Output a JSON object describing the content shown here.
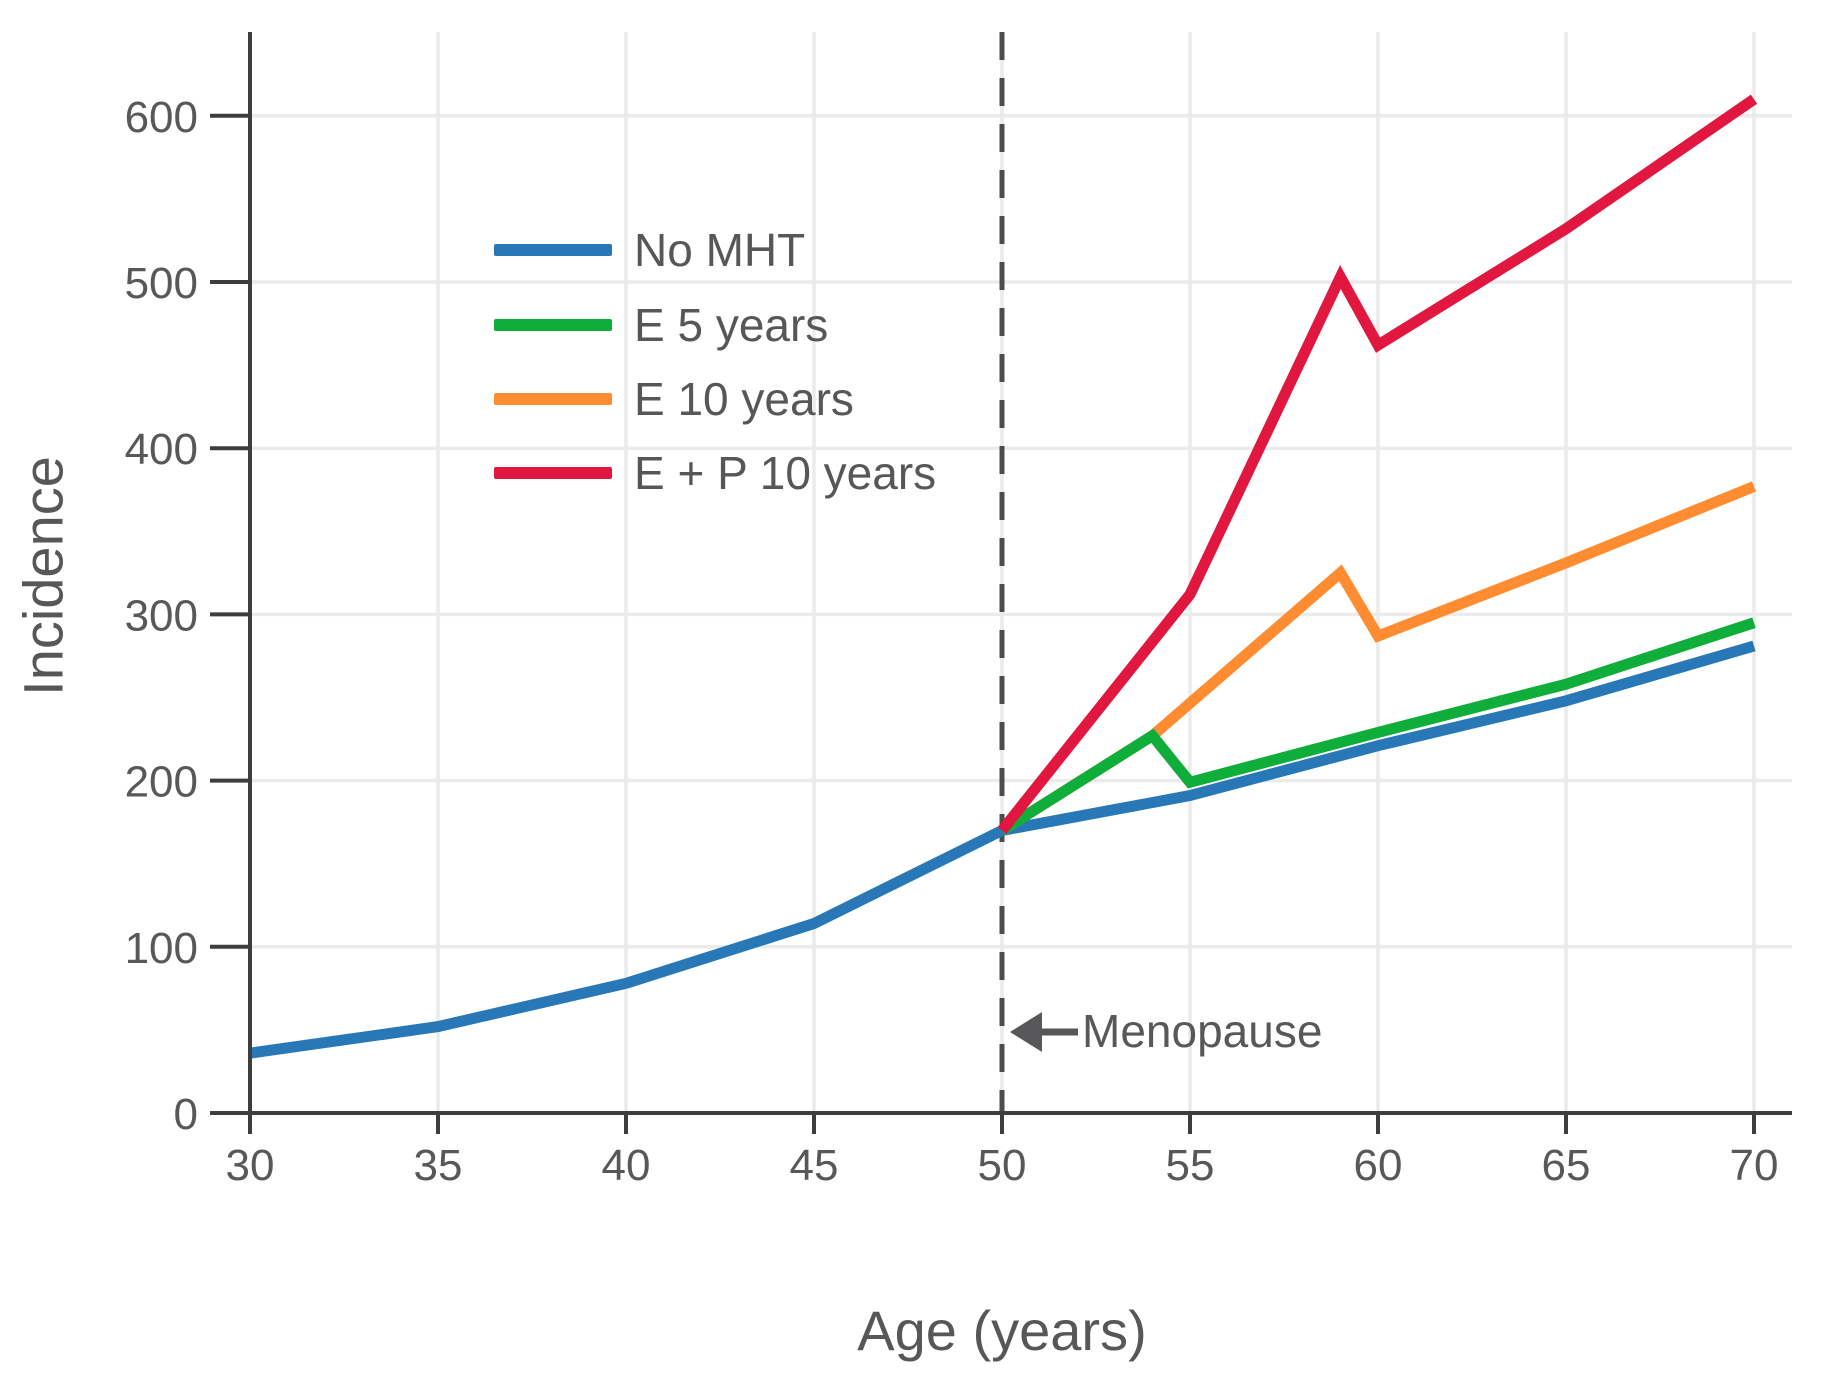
{
  "chart_data": {
    "type": "line",
    "title": "",
    "xlabel": "Age (years)",
    "ylabel": "Incidence",
    "xlim": [
      30,
      70
    ],
    "ylim": [
      0,
      650
    ],
    "xticks": [
      30,
      35,
      40,
      45,
      50,
      55,
      60,
      65,
      70
    ],
    "yticks": [
      0,
      100,
      200,
      300,
      400,
      500,
      600
    ],
    "grid": true,
    "legend_position": "upper-left-inside",
    "annotations": [
      {
        "label": "Menopause",
        "x": 50,
        "arrow": "left",
        "y": 50
      }
    ],
    "reference_lines": [
      {
        "axis": "x",
        "value": 50,
        "style": "dashed"
      }
    ],
    "series": [
      {
        "name": "No MHT",
        "color": "#2878b8",
        "points": [
          [
            30,
            36
          ],
          [
            35,
            52
          ],
          [
            40,
            78
          ],
          [
            45,
            114
          ],
          [
            50,
            170
          ],
          [
            55,
            191
          ],
          [
            60,
            221
          ],
          [
            65,
            248
          ],
          [
            70,
            281
          ]
        ]
      },
      {
        "name": "E 5 years",
        "color": "#0fad3a",
        "points": [
          [
            50,
            170
          ],
          [
            54,
            227
          ],
          [
            55,
            199
          ],
          [
            60,
            229
          ],
          [
            65,
            258
          ],
          [
            70,
            295
          ]
        ]
      },
      {
        "name": "E 10 years",
        "color": "#ff8c30",
        "points": [
          [
            50,
            170
          ],
          [
            54,
            227
          ],
          [
            59,
            325
          ],
          [
            60,
            287
          ],
          [
            65,
            331
          ],
          [
            70,
            377
          ]
        ]
      },
      {
        "name": "E + P 10 years",
        "color": "#e1173f",
        "points": [
          [
            50,
            170
          ],
          [
            55,
            312
          ],
          [
            59,
            503
          ],
          [
            60,
            462
          ],
          [
            65,
            532
          ],
          [
            70,
            610
          ]
        ]
      }
    ],
    "colors": {
      "grid": "#ebebeb",
      "axis": "#3d3e40",
      "tick_label": "#57585a",
      "annotation": "#58585a",
      "dashed_line": "#4b4c4e"
    }
  }
}
